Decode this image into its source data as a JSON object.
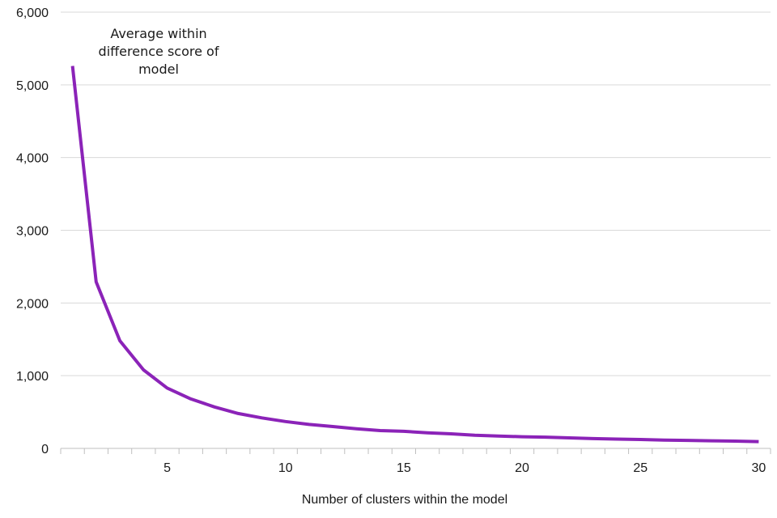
{
  "chart_data": {
    "type": "line",
    "title": "",
    "xlabel": "Number of clusters within the model",
    "ylabel": "",
    "annotation": [
      "Average within",
      "difference score of",
      "model"
    ],
    "xlim": [
      0.5,
      30.5
    ],
    "ylim": [
      0,
      6000
    ],
    "xticks": [
      5,
      10,
      15,
      20,
      25,
      30
    ],
    "xtick_labels": [
      "5",
      "10",
      "15",
      "20",
      "25",
      "30"
    ],
    "yticks": [
      0,
      1000,
      2000,
      3000,
      4000,
      5000,
      6000
    ],
    "ytick_labels": [
      "0",
      "1,000",
      "2,000",
      "3,000",
      "4,000",
      "5,000",
      "6,000"
    ],
    "grid": true,
    "legend": "none",
    "line_color": "#8b23b8",
    "series": [
      {
        "x": [
          1,
          2,
          3,
          4,
          5,
          6,
          7,
          8,
          9,
          10,
          11,
          12,
          13,
          14,
          15,
          16,
          17,
          18,
          19,
          20,
          21,
          22,
          23,
          24,
          25,
          26,
          27,
          28,
          29,
          30
        ],
        "values": [
          5260,
          2290,
          1480,
          1080,
          830,
          680,
          570,
          480,
          420,
          370,
          330,
          300,
          270,
          245,
          235,
          215,
          200,
          180,
          170,
          160,
          155,
          145,
          135,
          128,
          122,
          115,
          110,
          105,
          100,
          93
        ]
      }
    ]
  }
}
